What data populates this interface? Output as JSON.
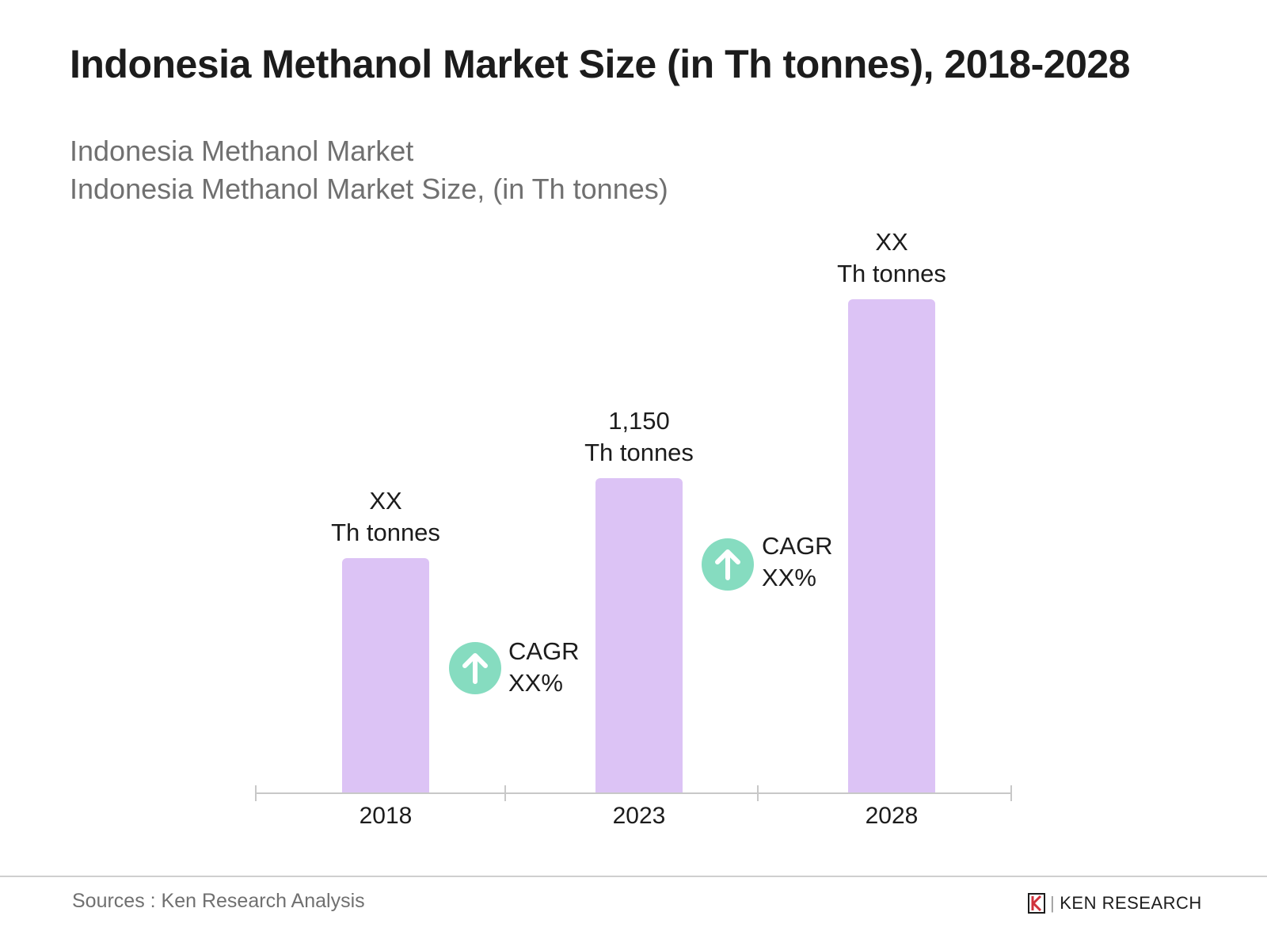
{
  "chart_data": {
    "type": "bar",
    "title": "Indonesia Methanol Market Size (in Th tonnes), 2018-2028",
    "subtitle_lines": [
      "Indonesia Methanol Market",
      "Indonesia Methanol Market Size, (in Th tonnes)"
    ],
    "categories": [
      "2018",
      "2023",
      "2028"
    ],
    "values": [
      857,
      1150,
      1806
    ],
    "data_labels": [
      {
        "value": "XX",
        "unit": "Th tonnes"
      },
      {
        "value": "1,150",
        "unit": "Th tonnes"
      },
      {
        "value": "XX",
        "unit": "Th tonnes"
      }
    ],
    "annotations": [
      {
        "label": "CAGR",
        "value": "XX%",
        "icon": "arrow-up-icon"
      },
      {
        "label": "CAGR",
        "value": "XX%",
        "icon": "arrow-up-icon"
      }
    ],
    "xlabel": "",
    "ylabel": "",
    "grid": false,
    "colors": {
      "bar": "#dcc3f5",
      "cagr": "#86dcc0"
    }
  },
  "footer": {
    "source": "Sources : Ken Research Analysis",
    "brand": "KEN RESEARCH"
  }
}
